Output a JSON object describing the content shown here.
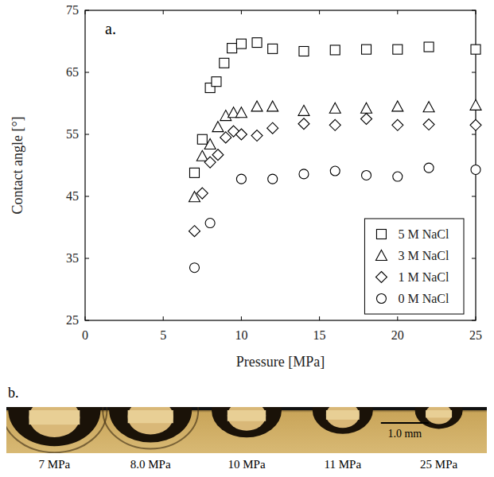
{
  "chart_data": {
    "type": "scatter",
    "annotations": [
      "a."
    ],
    "x_label": "Pressure [MPa]",
    "y_label": "Contact angle [°]",
    "xlim": [
      0,
      25
    ],
    "xticks": [
      0,
      5,
      10,
      15,
      20,
      25
    ],
    "ylim": [
      25,
      75
    ],
    "yticks": [
      25,
      35,
      45,
      55,
      65,
      75
    ],
    "grid": false,
    "legend": "lower right",
    "series": [
      {
        "name": "5 M NaCl",
        "color": "#000000",
        "marker": "square",
        "x": [
          7.0,
          7.5,
          8.0,
          8.4,
          8.9,
          9.4,
          10.0,
          11.0,
          12.0,
          14.0,
          16.0,
          18.0,
          20.0,
          22.0,
          25.0
        ],
        "values": [
          48.8,
          54.2,
          62.5,
          63.5,
          66.5,
          68.9,
          69.6,
          69.8,
          68.8,
          68.4,
          68.6,
          68.7,
          68.7,
          69.1,
          68.7
        ]
      },
      {
        "name": "3 M NaCl",
        "color": "#000000",
        "marker": "triangle",
        "x": [
          7.0,
          7.5,
          8.0,
          8.5,
          9.0,
          9.5,
          10.0,
          11.0,
          12.0,
          14.0,
          16.0,
          18.0,
          20.0,
          22.0,
          25.0
        ],
        "values": [
          44.9,
          51.5,
          53.4,
          56.2,
          58.0,
          58.5,
          58.5,
          59.5,
          59.5,
          58.8,
          59.2,
          59.2,
          59.5,
          59.4,
          59.7
        ]
      },
      {
        "name": "1 M NaCl",
        "color": "#000000",
        "marker": "diamond",
        "x": [
          7.0,
          7.5,
          8.0,
          8.5,
          9.0,
          9.5,
          10.0,
          11.0,
          12.0,
          14.0,
          16.0,
          18.0,
          20.0,
          22.0,
          25.0
        ],
        "values": [
          39.4,
          45.5,
          50.5,
          51.7,
          54.5,
          55.5,
          55.0,
          54.8,
          56.0,
          56.7,
          56.5,
          57.5,
          56.5,
          56.6,
          56.5
        ]
      },
      {
        "name": "0 M NaCl",
        "color": "#000000",
        "marker": "circle",
        "x": [
          7.0,
          8.0,
          10.0,
          12.0,
          14.0,
          16.0,
          18.0,
          20.0,
          22.0,
          25.0
        ],
        "values": [
          33.5,
          40.7,
          47.8,
          47.8,
          48.6,
          49.1,
          48.4,
          48.2,
          49.6,
          49.3
        ]
      }
    ]
  },
  "panel_b": {
    "label": "b.",
    "captions": [
      "7 MPa",
      "8.0 MPa",
      "10 MPa",
      "11 MPa",
      "25 MPa"
    ],
    "scale_bar": "1.0 mm"
  }
}
